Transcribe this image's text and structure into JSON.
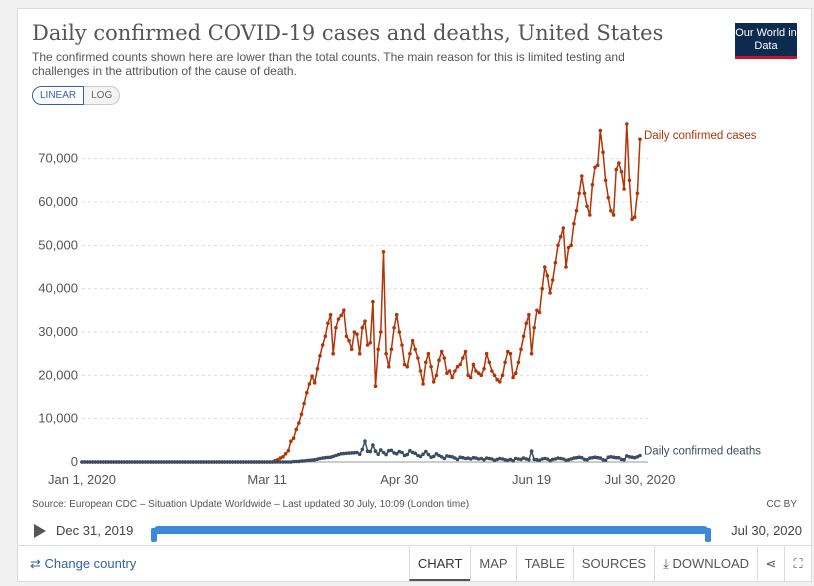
{
  "header": {
    "title": "Daily confirmed COVID-19 cases and deaths, United States",
    "subtitle": "The confirmed counts shown here are lower than the total counts. The main reason for this is limited testing and challenges in the attribution of the cause of death.",
    "logo": "Our World in Data"
  },
  "scale": {
    "linear": "LINEAR",
    "log": "LOG"
  },
  "colors": {
    "cases": "#b13507",
    "deaths": "#3b4d62",
    "accent": "#3b8ad9",
    "logo_bg": "#0d2b4f",
    "logo_bar": "#c8102e"
  },
  "chart_data": {
    "type": "line",
    "x_tick_labels": [
      "Jan 1, 2020",
      "Mar 11",
      "Apr 30",
      "Jun 19",
      "Jul 30, 2020"
    ],
    "x_ticks_day_index": [
      0,
      70,
      120,
      170,
      211
    ],
    "y_ticks": [
      0,
      10000,
      20000,
      30000,
      40000,
      50000,
      60000,
      70000
    ],
    "y_tick_labels": [
      "0",
      "10,000",
      "20,000",
      "30,000",
      "40,000",
      "50,000",
      "60,000",
      "70,000"
    ],
    "ylim": [
      0,
      78000
    ],
    "grid": true,
    "series": [
      {
        "name": "Daily confirmed cases",
        "points": [
          [
            0,
            0
          ],
          [
            72,
            0
          ],
          [
            73,
            300
          ],
          [
            74,
            500
          ],
          [
            75,
            900
          ],
          [
            76,
            1200
          ],
          [
            77,
            1900
          ],
          [
            78,
            2600
          ],
          [
            79,
            4800
          ],
          [
            80,
            5500
          ],
          [
            81,
            7500
          ],
          [
            82,
            9000
          ],
          [
            83,
            11000
          ],
          [
            84,
            13500
          ],
          [
            85,
            16000
          ],
          [
            86,
            18000
          ],
          [
            87,
            19800
          ],
          [
            88,
            18300
          ],
          [
            89,
            21500
          ],
          [
            90,
            24500
          ],
          [
            91,
            27000
          ],
          [
            92,
            29000
          ],
          [
            93,
            32000
          ],
          [
            94,
            34000
          ],
          [
            95,
            25000
          ],
          [
            96,
            31000
          ],
          [
            97,
            33000
          ],
          [
            98,
            33800
          ],
          [
            99,
            35000
          ],
          [
            100,
            29000
          ],
          [
            101,
            28000
          ],
          [
            102,
            26000
          ],
          [
            103,
            30000
          ],
          [
            104,
            29500
          ],
          [
            105,
            25000
          ],
          [
            106,
            31000
          ],
          [
            107,
            32500
          ],
          [
            108,
            27000
          ],
          [
            109,
            27500
          ],
          [
            110,
            37000
          ],
          [
            111,
            17500
          ],
          [
            112,
            26000
          ],
          [
            113,
            30000
          ],
          [
            114,
            48500
          ],
          [
            115,
            25000
          ],
          [
            116,
            22000
          ],
          [
            117,
            26000
          ],
          [
            118,
            31000
          ],
          [
            119,
            34000
          ],
          [
            120,
            30000
          ],
          [
            121,
            27000
          ],
          [
            122,
            22500
          ],
          [
            123,
            22000
          ],
          [
            124,
            25000
          ],
          [
            125,
            28000
          ],
          [
            126,
            26000
          ],
          [
            127,
            24000
          ],
          [
            128,
            21000
          ],
          [
            129,
            18000
          ],
          [
            130,
            23000
          ],
          [
            131,
            25000
          ],
          [
            132,
            22000
          ],
          [
            133,
            18500
          ],
          [
            134,
            20000
          ],
          [
            135,
            23500
          ],
          [
            136,
            25500
          ],
          [
            137,
            24000
          ],
          [
            138,
            20500
          ],
          [
            139,
            21000
          ],
          [
            140,
            19500
          ],
          [
            141,
            21000
          ],
          [
            142,
            22000
          ],
          [
            143,
            22500
          ],
          [
            144,
            24000
          ],
          [
            145,
            25500
          ],
          [
            146,
            20000
          ],
          [
            147,
            19500
          ],
          [
            148,
            22500
          ],
          [
            149,
            21000
          ],
          [
            150,
            20500
          ],
          [
            151,
            20000
          ],
          [
            152,
            21500
          ],
          [
            153,
            25000
          ],
          [
            154,
            23000
          ],
          [
            155,
            21000
          ],
          [
            156,
            20000
          ],
          [
            157,
            19000
          ],
          [
            158,
            18500
          ],
          [
            159,
            20000
          ],
          [
            160,
            23000
          ],
          [
            161,
            25500
          ],
          [
            162,
            25000
          ],
          [
            163,
            19500
          ],
          [
            164,
            20500
          ],
          [
            165,
            23000
          ],
          [
            166,
            26000
          ],
          [
            167,
            29000
          ],
          [
            168,
            32000
          ],
          [
            169,
            34000
          ],
          [
            170,
            25000
          ],
          [
            171,
            31000
          ],
          [
            172,
            35000
          ],
          [
            173,
            34500
          ],
          [
            174,
            40000
          ],
          [
            175,
            45000
          ],
          [
            176,
            43000
          ],
          [
            177,
            39000
          ],
          [
            178,
            42000
          ],
          [
            179,
            46000
          ],
          [
            180,
            50000
          ],
          [
            181,
            52000
          ],
          [
            182,
            54000
          ],
          [
            183,
            45000
          ],
          [
            184,
            49500
          ],
          [
            185,
            50000
          ],
          [
            186,
            55000
          ],
          [
            187,
            58000
          ],
          [
            188,
            62000
          ],
          [
            189,
            66000
          ],
          [
            190,
            62000
          ],
          [
            191,
            59000
          ],
          [
            192,
            57000
          ],
          [
            193,
            64000
          ],
          [
            194,
            68000
          ],
          [
            195,
            68500
          ],
          [
            196,
            76500
          ],
          [
            197,
            71500
          ],
          [
            198,
            65000
          ],
          [
            199,
            61000
          ],
          [
            200,
            58000
          ],
          [
            201,
            57000
          ],
          [
            202,
            67500
          ],
          [
            203,
            69000
          ],
          [
            204,
            67000
          ],
          [
            205,
            63000
          ],
          [
            206,
            78000
          ],
          [
            207,
            65000
          ],
          [
            208,
            56000
          ],
          [
            209,
            56500
          ],
          [
            210,
            62000
          ],
          [
            211,
            74500
          ]
        ]
      },
      {
        "name": "Daily confirmed deaths",
        "points": [
          [
            0,
            0
          ],
          [
            79,
            0
          ],
          [
            80,
            100
          ],
          [
            82,
            150
          ],
          [
            84,
            250
          ],
          [
            86,
            400
          ],
          [
            88,
            500
          ],
          [
            90,
            800
          ],
          [
            92,
            1000
          ],
          [
            94,
            1100
          ],
          [
            96,
            1500
          ],
          [
            98,
            1900
          ],
          [
            100,
            2000
          ],
          [
            102,
            2100
          ],
          [
            104,
            2200
          ],
          [
            105,
            1800
          ],
          [
            106,
            2900
          ],
          [
            107,
            4800
          ],
          [
            108,
            2500
          ],
          [
            109,
            2400
          ],
          [
            110,
            3900
          ],
          [
            111,
            2500
          ],
          [
            112,
            1800
          ],
          [
            113,
            2800
          ],
          [
            114,
            2200
          ],
          [
            115,
            1700
          ],
          [
            116,
            2600
          ],
          [
            117,
            2700
          ],
          [
            118,
            2100
          ],
          [
            119,
            1900
          ],
          [
            120,
            2400
          ],
          [
            121,
            2200
          ],
          [
            122,
            1500
          ],
          [
            123,
            1700
          ],
          [
            124,
            2600
          ],
          [
            125,
            2200
          ],
          [
            126,
            2000
          ],
          [
            127,
            1500
          ],
          [
            128,
            1300
          ],
          [
            129,
            1800
          ],
          [
            130,
            2400
          ],
          [
            131,
            1700
          ],
          [
            132,
            1100
          ],
          [
            133,
            1300
          ],
          [
            134,
            1900
          ],
          [
            135,
            1500
          ],
          [
            136,
            1200
          ],
          [
            137,
            800
          ],
          [
            138,
            1400
          ],
          [
            139,
            1300
          ],
          [
            140,
            1200
          ],
          [
            141,
            900
          ],
          [
            142,
            600
          ],
          [
            143,
            1100
          ],
          [
            144,
            1000
          ],
          [
            145,
            800
          ],
          [
            146,
            900
          ],
          [
            147,
            700
          ],
          [
            148,
            1000
          ],
          [
            149,
            900
          ],
          [
            150,
            700
          ],
          [
            151,
            800
          ],
          [
            152,
            500
          ],
          [
            153,
            900
          ],
          [
            154,
            800
          ],
          [
            155,
            700
          ],
          [
            156,
            400
          ],
          [
            157,
            600
          ],
          [
            158,
            800
          ],
          [
            159,
            700
          ],
          [
            160,
            500
          ],
          [
            161,
            400
          ],
          [
            162,
            600
          ],
          [
            163,
            300
          ],
          [
            164,
            800
          ],
          [
            165,
            700
          ],
          [
            166,
            600
          ],
          [
            167,
            900
          ],
          [
            168,
            700
          ],
          [
            169,
            500
          ],
          [
            170,
            2500
          ],
          [
            171,
            600
          ],
          [
            172,
            500
          ],
          [
            173,
            400
          ],
          [
            174,
            700
          ],
          [
            175,
            800
          ],
          [
            176,
            700
          ],
          [
            177,
            300
          ],
          [
            178,
            600
          ],
          [
            179,
            700
          ],
          [
            180,
            900
          ],
          [
            181,
            800
          ],
          [
            182,
            700
          ],
          [
            183,
            400
          ],
          [
            184,
            500
          ],
          [
            185,
            700
          ],
          [
            186,
            900
          ],
          [
            187,
            1000
          ],
          [
            188,
            1100
          ],
          [
            189,
            1000
          ],
          [
            190,
            600
          ],
          [
            191,
            500
          ],
          [
            192,
            900
          ],
          [
            193,
            1000
          ],
          [
            194,
            1100
          ],
          [
            195,
            1000
          ],
          [
            196,
            900
          ],
          [
            197,
            500
          ],
          [
            198,
            400
          ],
          [
            199,
            1100
          ],
          [
            200,
            1200
          ],
          [
            201,
            1100
          ],
          [
            202,
            1000
          ],
          [
            203,
            1000
          ],
          [
            204,
            600
          ],
          [
            205,
            500
          ],
          [
            206,
            1400
          ],
          [
            207,
            1200
          ],
          [
            208,
            1100
          ],
          [
            209,
            1000
          ],
          [
            210,
            1200
          ],
          [
            211,
            1500
          ]
        ]
      }
    ]
  },
  "source": "Source: European CDC – Situation Update Worldwide – Last updated 30 July, 10:09 (London time)",
  "license": "CC BY",
  "timeline": {
    "start": "Dec 31, 2019",
    "end": "Jul 30, 2020"
  },
  "footer": {
    "change_country": "Change country",
    "tabs": [
      "CHART",
      "MAP",
      "TABLE",
      "SOURCES",
      "DOWNLOAD"
    ]
  }
}
